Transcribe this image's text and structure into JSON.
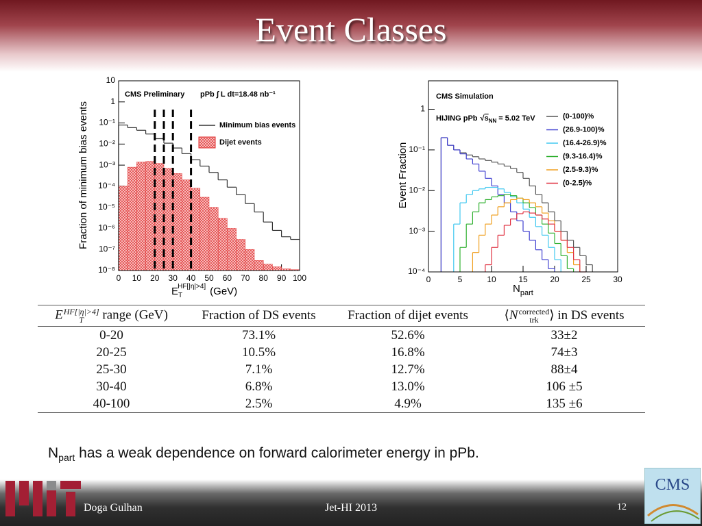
{
  "title": "Event Classes",
  "chart_data": [
    {
      "type": "histogram",
      "log_y": true,
      "annotations": [
        "CMS Preliminary",
        "pPb ∫ L dt=18.48 nb⁻¹"
      ],
      "ylabel": "Fraction of minimum bias events",
      "xlabel": {
        "symbol": "E",
        "sub": "T",
        "sup": "HF[|η|>4]",
        "unit": "(GeV)"
      },
      "xlim": [
        0,
        100
      ],
      "xticks": [
        0,
        10,
        20,
        30,
        40,
        50,
        60,
        70,
        80,
        90,
        100
      ],
      "ylim": [
        1e-08,
        10
      ],
      "yticks": [
        {
          "value": 1e-08,
          "label": "10⁻⁸"
        },
        {
          "value": 1e-07,
          "label": "10⁻⁷"
        },
        {
          "value": 1e-06,
          "label": "10⁻⁶"
        },
        {
          "value": 1e-05,
          "label": "10⁻⁵"
        },
        {
          "value": 0.0001,
          "label": "10⁻⁴"
        },
        {
          "value": 0.001,
          "label": "10⁻³"
        },
        {
          "value": 0.01,
          "label": "10⁻²"
        },
        {
          "value": 0.1,
          "label": "10⁻¹"
        },
        1,
        10
      ],
      "bins": [
        0,
        5,
        10,
        15,
        20,
        25,
        30,
        35,
        40,
        45,
        50,
        55,
        60,
        65,
        70,
        75,
        80,
        85,
        90,
        95,
        100
      ],
      "boundaries": [
        20,
        25,
        30,
        40
      ],
      "series": [
        {
          "name": "Minimum bias events",
          "color": "#333333",
          "style": "line",
          "values": [
            0.08,
            0.06,
            0.045,
            0.03,
            0.018,
            0.011,
            0.0065,
            0.0035,
            0.0018,
            0.0009,
            0.00045,
            0.0002,
            9e-05,
            4e-05,
            1.5e-05,
            6e-06,
            2e-06,
            8e-07,
            4e-07,
            3e-07
          ]
        },
        {
          "name": "Dijet events",
          "color": "#e03030",
          "style": "hatched",
          "values": [
            0.0001,
            0.0008,
            0.0014,
            0.0015,
            0.0012,
            0.0007,
            0.0004,
            0.0002,
            8e-05,
            3e-05,
            1e-05,
            3e-06,
            1e-06,
            3e-07,
            1e-07,
            3e-08,
            2e-08,
            1.5e-08,
            1.2e-08,
            1.1e-08
          ]
        }
      ]
    },
    {
      "type": "histogram",
      "log_y": true,
      "annotations": [
        "CMS Simulation"
      ],
      "energy": {
        "text": "HIJING pPb",
        "sqrt": "s",
        "sub": "NN",
        "rest": "= 5.02 TeV"
      },
      "ylabel": "Event Fraction",
      "xlabel": {
        "symbol": "N",
        "sub": "part"
      },
      "xlim": [
        0,
        30
      ],
      "xticks": [
        0,
        5,
        10,
        15,
        20,
        25,
        30
      ],
      "ylim": [
        0.0001,
        5
      ],
      "yticks": [
        {
          "value": 0.0001,
          "label": "10⁻⁴"
        },
        {
          "value": 0.001,
          "label": "10⁻³"
        },
        {
          "value": 0.01,
          "label": "10⁻²"
        },
        {
          "value": 0.1,
          "label": "10⁻¹"
        },
        1
      ],
      "bins": [
        0,
        1,
        2,
        3,
        4,
        5,
        6,
        7,
        8,
        9,
        10,
        11,
        12,
        13,
        14,
        15,
        16,
        17,
        18,
        19,
        20,
        21,
        22,
        23,
        24,
        25,
        26,
        27,
        28,
        29,
        30
      ],
      "series": [
        {
          "name": "(0-100)%",
          "color": "#555555",
          "style": "line",
          "values": [
            null,
            null,
            0.2,
            0.13,
            0.1,
            0.085,
            0.075,
            0.068,
            0.06,
            0.055,
            0.05,
            0.045,
            0.04,
            0.035,
            0.028,
            0.02,
            0.013,
            0.008,
            0.005,
            0.003,
            0.0018,
            0.001,
            0.0006,
            0.0004,
            0.00025,
            0.00015,
            null,
            null,
            null,
            null
          ]
        },
        {
          "name": "(26.9-100)%",
          "color": "#4040d0",
          "style": "line",
          "values": [
            null,
            null,
            0.2,
            0.13,
            0.1,
            0.08,
            0.06,
            0.045,
            0.03,
            0.02,
            0.013,
            0.008,
            0.005,
            0.003,
            0.0018,
            0.001,
            0.0006,
            0.00035,
            0.0002,
            0.00012,
            null,
            null,
            null,
            null,
            null,
            null,
            null,
            null,
            null,
            null
          ]
        },
        {
          "name": "(16.4-26.9)%",
          "color": "#40c8f0",
          "style": "line",
          "values": [
            null,
            null,
            null,
            null,
            0.0015,
            0.005,
            0.008,
            0.01,
            0.011,
            0.012,
            0.012,
            0.011,
            0.009,
            0.007,
            0.005,
            0.0035,
            0.0022,
            0.0013,
            0.0008,
            0.0004,
            0.0002,
            null,
            null,
            null,
            null,
            null,
            null,
            null,
            null,
            null
          ]
        },
        {
          "name": "(9.3-16.4)%",
          "color": "#30b030",
          "style": "line",
          "values": [
            null,
            null,
            null,
            null,
            null,
            0.0004,
            0.0015,
            0.003,
            0.005,
            0.006,
            0.007,
            0.0075,
            0.008,
            0.0075,
            0.0065,
            0.005,
            0.0038,
            0.0025,
            0.0015,
            0.0009,
            0.0005,
            0.00025,
            0.00012,
            null,
            null,
            null,
            null,
            null,
            null,
            null
          ]
        },
        {
          "name": "(2.5-9.3)%",
          "color": "#f0a020",
          "style": "line",
          "values": [
            null,
            null,
            null,
            null,
            null,
            null,
            null,
            0.0003,
            0.0008,
            0.0015,
            0.0025,
            0.004,
            0.005,
            0.006,
            0.0065,
            0.006,
            0.005,
            0.004,
            0.0028,
            0.0018,
            0.001,
            0.0006,
            0.0003,
            0.00015,
            null,
            null,
            null,
            null,
            null,
            null
          ]
        },
        {
          "name": "(0-2.5)%",
          "color": "#e03040",
          "style": "line",
          "values": [
            null,
            null,
            null,
            null,
            null,
            null,
            null,
            null,
            null,
            0.00015,
            0.0004,
            0.0008,
            0.0014,
            0.002,
            0.0027,
            0.003,
            0.0028,
            0.0025,
            0.002,
            0.0015,
            0.001,
            0.0006,
            0.0004,
            0.0002,
            0.0001,
            null,
            null,
            null,
            null,
            null
          ]
        }
      ]
    }
  ],
  "table": {
    "header": [
      {
        "symbol": "E",
        "sub": "T",
        "sup": "HF[|η|>4]",
        "text": "range (GeV)"
      },
      "Fraction of DS events",
      "Fraction of dijet events",
      {
        "open": "⟨",
        "symbol": "N",
        "sub": "trk",
        "sup": "corrected",
        "close": "⟩",
        "text": "in DS events"
      }
    ],
    "rows": [
      [
        "0-20",
        "73.1%",
        "52.6%",
        "33±2"
      ],
      [
        "20-25",
        "10.5%",
        "16.8%",
        "74±3"
      ],
      [
        "25-30",
        "7.1%",
        "12.7%",
        "88±4"
      ],
      [
        "30-40",
        "6.8%",
        "13.0%",
        "106 ±5"
      ],
      [
        "40-100",
        "2.5%",
        "4.9%",
        "135 ±6"
      ]
    ]
  },
  "note": {
    "symbol": "N",
    "sub": "part",
    "text": "has a weak dependence on forward calorimeter energy in pPb."
  },
  "footer": {
    "author": "Doga Gulhan",
    "event": "Jet-HI 2013",
    "page": "12",
    "logo": "CMS"
  }
}
